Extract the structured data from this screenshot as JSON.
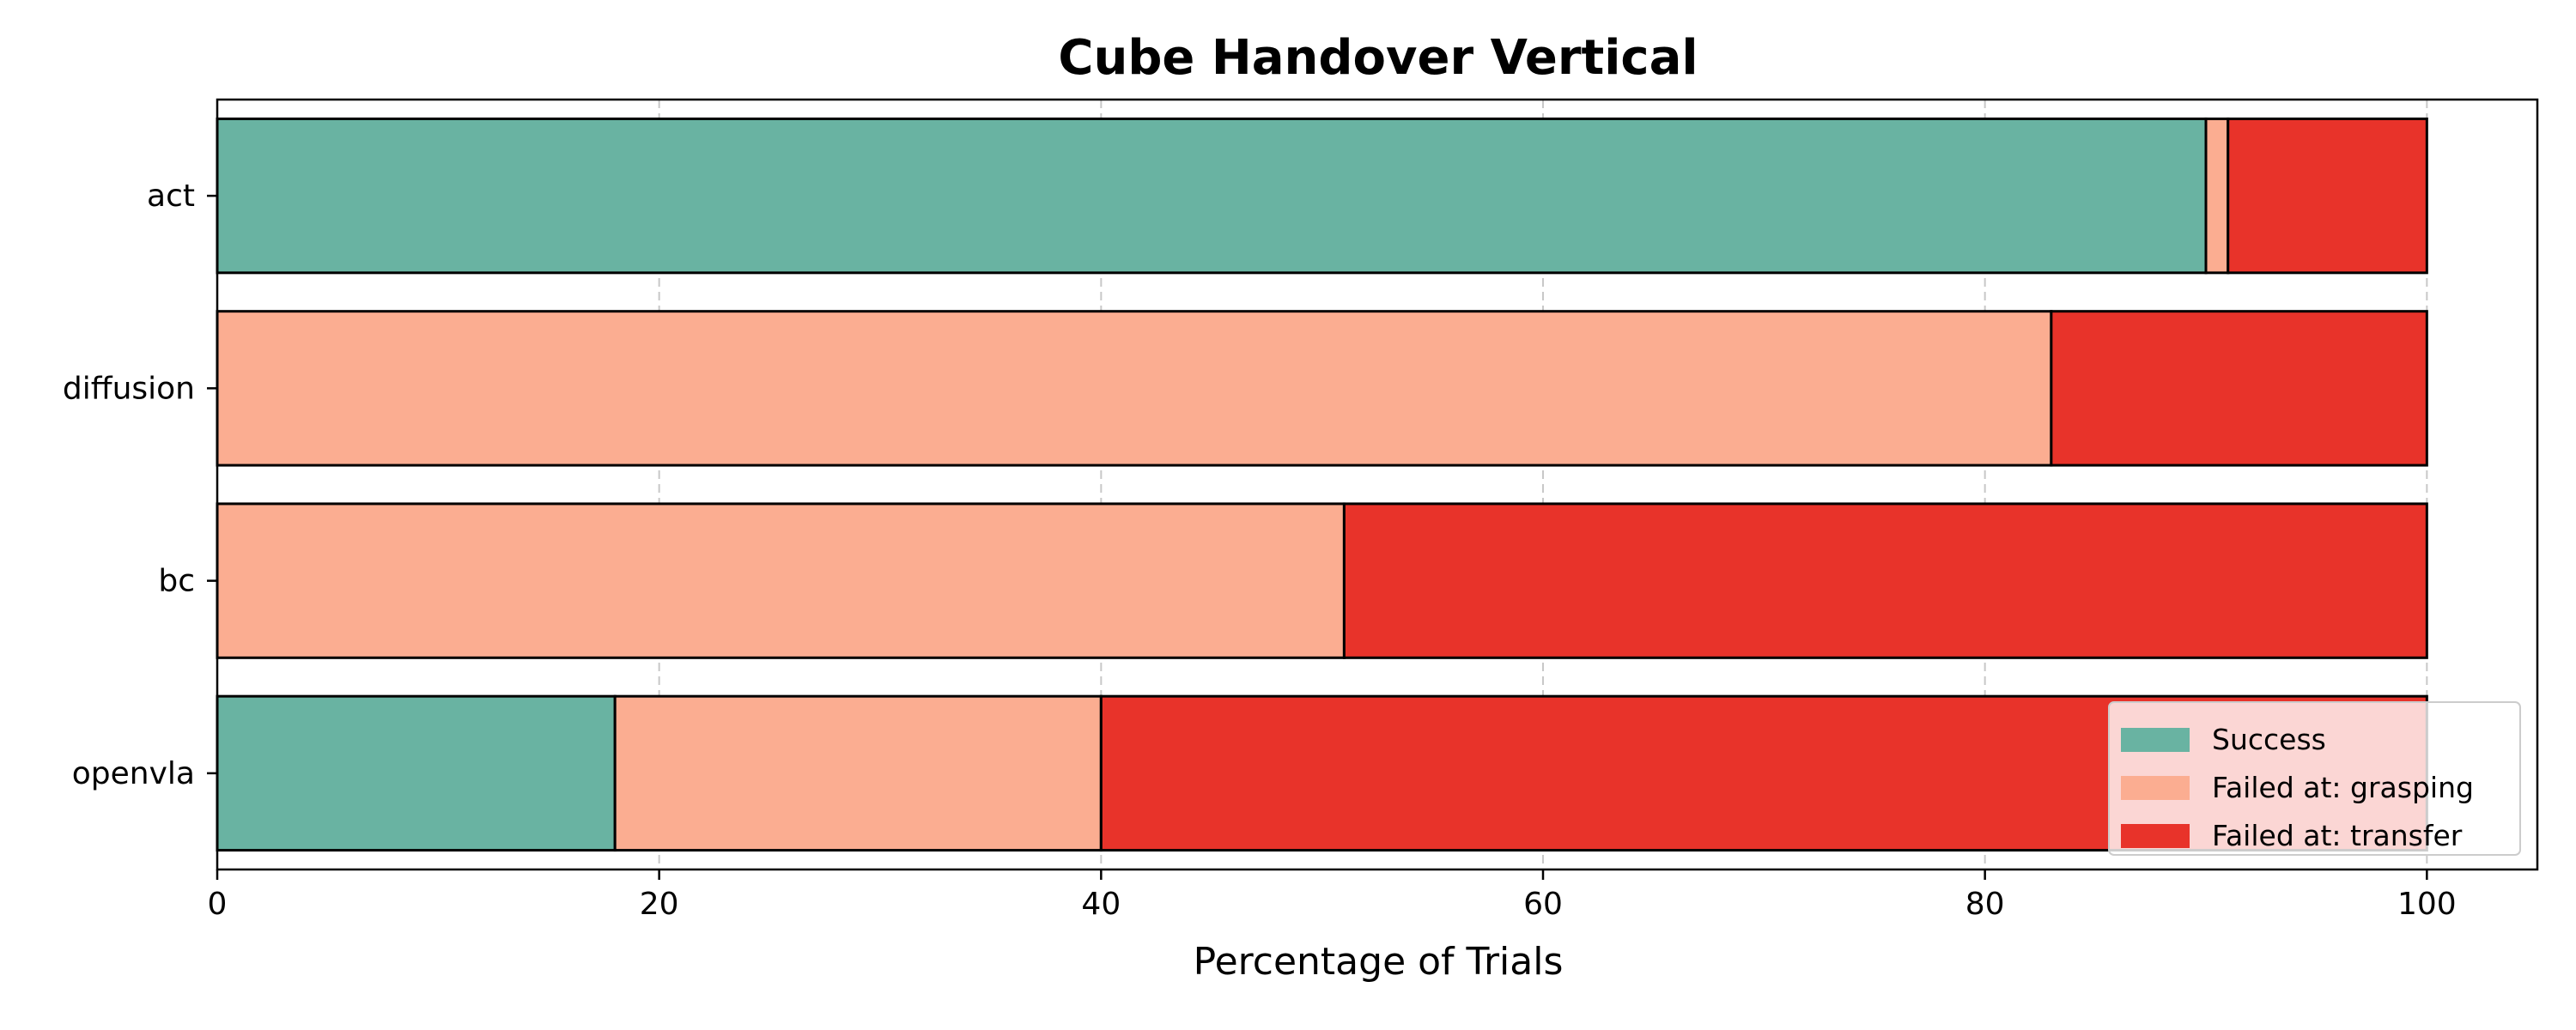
{
  "chart_data": {
    "type": "bar",
    "orientation": "horizontal",
    "stacked": true,
    "title": "Cube Handover Vertical",
    "xlabel": "Percentage of Trials",
    "ylabel": "",
    "xlim": [
      0,
      105
    ],
    "xticks": [
      0,
      20,
      40,
      60,
      80,
      100
    ],
    "grid": "x-dashed",
    "legend_position": "bottom-right",
    "categories": [
      "act",
      "diffusion",
      "bc",
      "openvla"
    ],
    "series": [
      {
        "name": "Success",
        "color": "#69b3a2",
        "values": [
          90,
          0,
          0,
          18
        ]
      },
      {
        "name": "Failed at: grasping",
        "color": "#fbad91",
        "values": [
          1,
          83,
          51,
          22
        ]
      },
      {
        "name": "Failed at: transfer",
        "color": "#e8332a",
        "values": [
          9,
          17,
          49,
          60
        ]
      }
    ]
  }
}
